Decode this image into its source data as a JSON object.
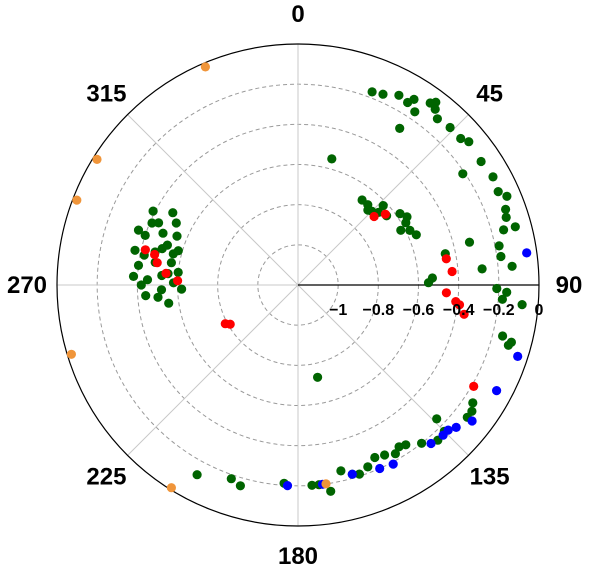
{
  "chart_data": {
    "type": "scatter",
    "projection": "polar",
    "title": "",
    "angle_ticks": [
      "0",
      "45",
      "90",
      "135",
      "180",
      "225",
      "270",
      "315"
    ],
    "angle_tick_values": [
      0,
      45,
      90,
      135,
      180,
      225,
      270,
      315
    ],
    "radial_ticks": [
      "−1",
      "−0.8",
      "−0.6",
      "−0.4",
      "−0.2",
      "0"
    ],
    "radial_tick_values": [
      -1,
      -0.8,
      -0.6,
      -0.4,
      -0.2,
      0
    ],
    "rlim": [
      -1.2,
      0
    ],
    "grid": true,
    "legend": "none",
    "series": [
      {
        "color": "#006400",
        "points": [
          [
            33,
            -0.27
          ],
          [
            21,
            -0.17
          ],
          [
            24,
            -0.16
          ],
          [
            28,
            -0.13
          ],
          [
            31,
            -0.14
          ],
          [
            34,
            -0.16
          ],
          [
            32,
            -0.11
          ],
          [
            36,
            -0.08
          ],
          [
            37,
            -0.06
          ],
          [
            38,
            -0.09
          ],
          [
            40,
            -0.12
          ],
          [
            44,
            -0.11
          ],
          [
            48,
            -0.11
          ],
          [
            50,
            -0.09
          ],
          [
            56,
            -0.21
          ],
          [
            56,
            -0.1
          ],
          [
            61,
            -0.09
          ],
          [
            65,
            -0.1
          ],
          [
            67,
            -0.07
          ],
          [
            70,
            -0.1
          ],
          [
            72,
            -0.11
          ],
          [
            75,
            -0.14
          ],
          [
            75,
            -0.08
          ],
          [
            76,
            -0.32
          ],
          [
            78,
            -0.45
          ],
          [
            79,
            -0.18
          ],
          [
            82,
            -0.18
          ],
          [
            85,
            -0.13
          ],
          [
            85,
            -0.28
          ],
          [
            87,
            -0.53
          ],
          [
            89,
            -0.55
          ],
          [
            91,
            -0.21
          ],
          [
            92,
            -0.16
          ],
          [
            94,
            -0.18
          ],
          [
            95,
            -0.08
          ],
          [
            104,
            -0.15
          ],
          [
            105,
            -0.1
          ],
          [
            106,
            -0.11
          ],
          [
            124,
            -0.15
          ],
          [
            126,
            -0.13
          ],
          [
            128,
            -0.13
          ],
          [
            134,
            -0.24
          ],
          [
            135,
            -0.17
          ],
          [
            138,
            -0.16
          ],
          [
            142,
            -0.2
          ],
          [
            146,
            -0.24
          ],
          [
            148,
            -0.25
          ],
          [
            150,
            -0.23
          ],
          [
            153,
            -0.25
          ],
          [
            156,
            -0.26
          ],
          [
            159,
            -0.23
          ],
          [
            162,
            -0.21
          ],
          [
            164,
            -0.22
          ],
          [
            167,
            -0.25
          ],
          [
            171,
            -0.16
          ],
          [
            174,
            -0.2
          ],
          [
            176,
            -0.2
          ],
          [
            184,
            -0.21
          ],
          [
            196,
            -0.16
          ],
          [
            199,
            -0.18
          ],
          [
            208,
            -0.13
          ],
          [
            168,
            -0.73
          ],
          [
            15,
            -0.55
          ],
          [
            37,
            -0.67
          ],
          [
            41,
            -0.67
          ],
          [
            43,
            -0.69
          ],
          [
            45,
            -0.68
          ],
          [
            47,
            -0.62
          ],
          [
            48,
            -0.66
          ],
          [
            52,
            -0.64
          ],
          [
            55,
            -0.58
          ],
          [
            58,
            -0.56
          ],
          [
            60,
            -0.58
          ],
          [
            62,
            -0.62
          ],
          [
            64,
            -0.58
          ],
          [
            67,
            -0.56
          ],
          [
            289,
            -0.36
          ],
          [
            293,
            -0.41
          ],
          [
            285,
            -0.5
          ],
          [
            300,
            -0.48
          ],
          [
            297,
            -0.39
          ],
          [
            282,
            -0.37
          ],
          [
            287,
            -0.52
          ],
          [
            272,
            -0.45
          ],
          [
            268,
            -0.52
          ],
          [
            265,
            -0.5
          ],
          [
            279,
            -0.48
          ],
          [
            283,
            -0.47
          ],
          [
            275,
            -0.55
          ],
          [
            271,
            -0.58
          ],
          [
            268,
            -0.62
          ],
          [
            277,
            -0.4
          ],
          [
            286,
            -0.58
          ],
          [
            292,
            -0.55
          ],
          [
            262,
            -0.55
          ],
          [
            294,
            -0.44
          ],
          [
            281,
            -0.42
          ],
          [
            276,
            -0.6
          ],
          [
            273,
            -0.38
          ],
          [
            291,
            -0.48
          ],
          [
            284,
            -0.56
          ],
          [
            266,
            -0.44
          ],
          [
            297,
            -0.52
          ],
          [
            270,
            -0.42
          ],
          [
            288,
            -0.4
          ],
          [
            280,
            -0.56
          ],
          [
            274,
            -0.52
          ]
        ]
      },
      {
        "color": "#ff0000",
        "points": [
          [
            48,
            -0.69
          ],
          [
            51,
            -0.64
          ],
          [
            80,
            -0.45
          ],
          [
            85,
            -0.43
          ],
          [
            93,
            -0.46
          ],
          [
            96,
            -0.41
          ],
          [
            97,
            -0.39
          ],
          [
            100,
            -0.36
          ],
          [
            120,
            -0.19
          ],
          [
            242,
            -0.79
          ],
          [
            240,
            -0.81
          ],
          [
            283,
            -0.42
          ],
          [
            282,
            -0.47
          ],
          [
            279,
            -0.49
          ],
          [
            275,
            -0.54
          ],
          [
            272,
            -0.6
          ]
        ]
      },
      {
        "color": "#0000ff",
        "points": [
          [
            82,
            -0.05
          ],
          [
            108,
            -0.05
          ],
          [
            118,
            -0.08
          ],
          [
            128,
            -0.1
          ],
          [
            132,
            -0.14
          ],
          [
            134,
            -0.16
          ],
          [
            136,
            -0.16
          ],
          [
            140,
            -0.17
          ],
          [
            152,
            -0.19
          ],
          [
            156,
            -0.2
          ],
          [
            164,
            -0.22
          ],
          [
            173,
            -0.2
          ],
          [
            183,
            -0.2
          ]
        ]
      },
      {
        "color": "#f0953a",
        "points": [
          [
            337,
            -0.02
          ],
          [
            302,
            -0.02
          ],
          [
            291,
            -0.02
          ],
          [
            253,
            -0.02
          ],
          [
            212,
            -0.01
          ],
          [
            172,
            -0.2
          ]
        ]
      }
    ]
  }
}
